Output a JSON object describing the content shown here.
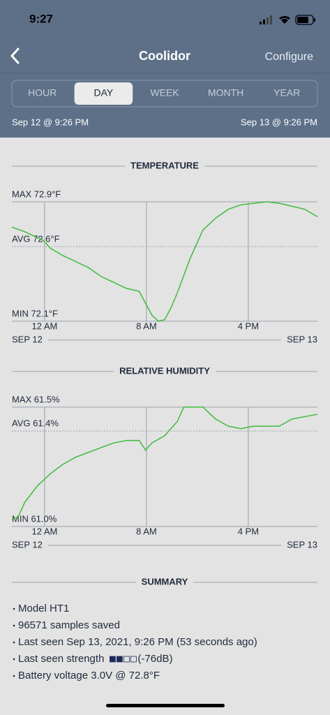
{
  "status_bar": {
    "time": "9:27"
  },
  "nav": {
    "title": "Coolidor",
    "action": "Configure"
  },
  "tabs": {
    "items": [
      "HOUR",
      "DAY",
      "WEEK",
      "MONTH",
      "YEAR"
    ],
    "selected": 1
  },
  "range": {
    "start": "Sep 12 @ 9:26 PM",
    "end": "Sep 13 @ 9:26 PM"
  },
  "charts": [
    {
      "type": "line",
      "title": "TEMPERATURE",
      "color": "#3dbb3d",
      "x": [
        0,
        1,
        2,
        2.5,
        3,
        4,
        5,
        6,
        7,
        8,
        9,
        10,
        11,
        11.5,
        12,
        12.5,
        13,
        14,
        15,
        16,
        17,
        18,
        19,
        20,
        21,
        22,
        23,
        24
      ],
      "values": [
        72.73,
        72.7,
        72.66,
        72.64,
        72.59,
        72.54,
        72.5,
        72.46,
        72.4,
        72.36,
        72.32,
        72.3,
        72.14,
        72.1,
        72.11,
        72.19,
        72.29,
        72.52,
        72.71,
        72.79,
        72.85,
        72.88,
        72.89,
        72.9,
        72.89,
        72.87,
        72.85,
        72.8
      ],
      "xlim": [
        0,
        24
      ],
      "ylim": [
        72.1,
        72.9
      ],
      "xticks": [
        {
          "value": 2.57,
          "label": "12 AM"
        },
        {
          "value": 10.57,
          "label": "8 AM"
        },
        {
          "value": 18.57,
          "label": "4 PM"
        }
      ],
      "yticks": [
        {
          "value": 72.9,
          "label": "MAX 72.9°F"
        },
        {
          "value": 72.6,
          "label": "AVG 72.6°F"
        },
        {
          "value": 72.1,
          "label": "MIN 72.1°F"
        }
      ],
      "start_label": "SEP 12",
      "end_label": "SEP 13"
    },
    {
      "type": "line",
      "title": "RELATIVE HUMIDITY",
      "color": "#3dbb3d",
      "x": [
        0,
        0.5,
        1,
        2,
        3,
        4,
        5,
        6,
        7,
        8,
        9,
        10,
        10.5,
        11,
        12,
        13,
        13.5,
        14,
        15,
        16,
        17,
        18,
        19,
        20,
        21,
        22,
        23,
        24
      ],
      "values": [
        61.03,
        61.04,
        61.1,
        61.17,
        61.22,
        61.26,
        61.29,
        61.31,
        61.33,
        61.35,
        61.36,
        61.36,
        61.32,
        61.35,
        61.38,
        61.44,
        61.5,
        61.5,
        61.5,
        61.45,
        61.42,
        61.41,
        61.42,
        61.42,
        61.42,
        61.45,
        61.46,
        61.47
      ],
      "xlim": [
        0,
        24
      ],
      "ylim": [
        61.0,
        61.5
      ],
      "xticks": [
        {
          "value": 2.57,
          "label": "12 AM"
        },
        {
          "value": 10.57,
          "label": "8 AM"
        },
        {
          "value": 18.57,
          "label": "4 PM"
        }
      ],
      "yticks": [
        {
          "value": 61.5,
          "label": "MAX 61.5%"
        },
        {
          "value": 61.4,
          "label": "AVG 61.4%"
        },
        {
          "value": 61.0,
          "label": "MIN 61.0%"
        }
      ],
      "start_label": "SEP 12",
      "end_label": "SEP 13"
    }
  ],
  "summary": {
    "title": "SUMMARY",
    "items": [
      {
        "text": "Model HT1"
      },
      {
        "text": "96571 samples saved"
      },
      {
        "text": "Last seen Sep 13, 2021, 9:26 PM (53 seconds ago)"
      },
      {
        "text": "Last seen strength",
        "signal_bars": 2,
        "signal": "(-76dB)"
      },
      {
        "text": "Battery voltage 3.0V @ 72.8°F"
      }
    ]
  }
}
